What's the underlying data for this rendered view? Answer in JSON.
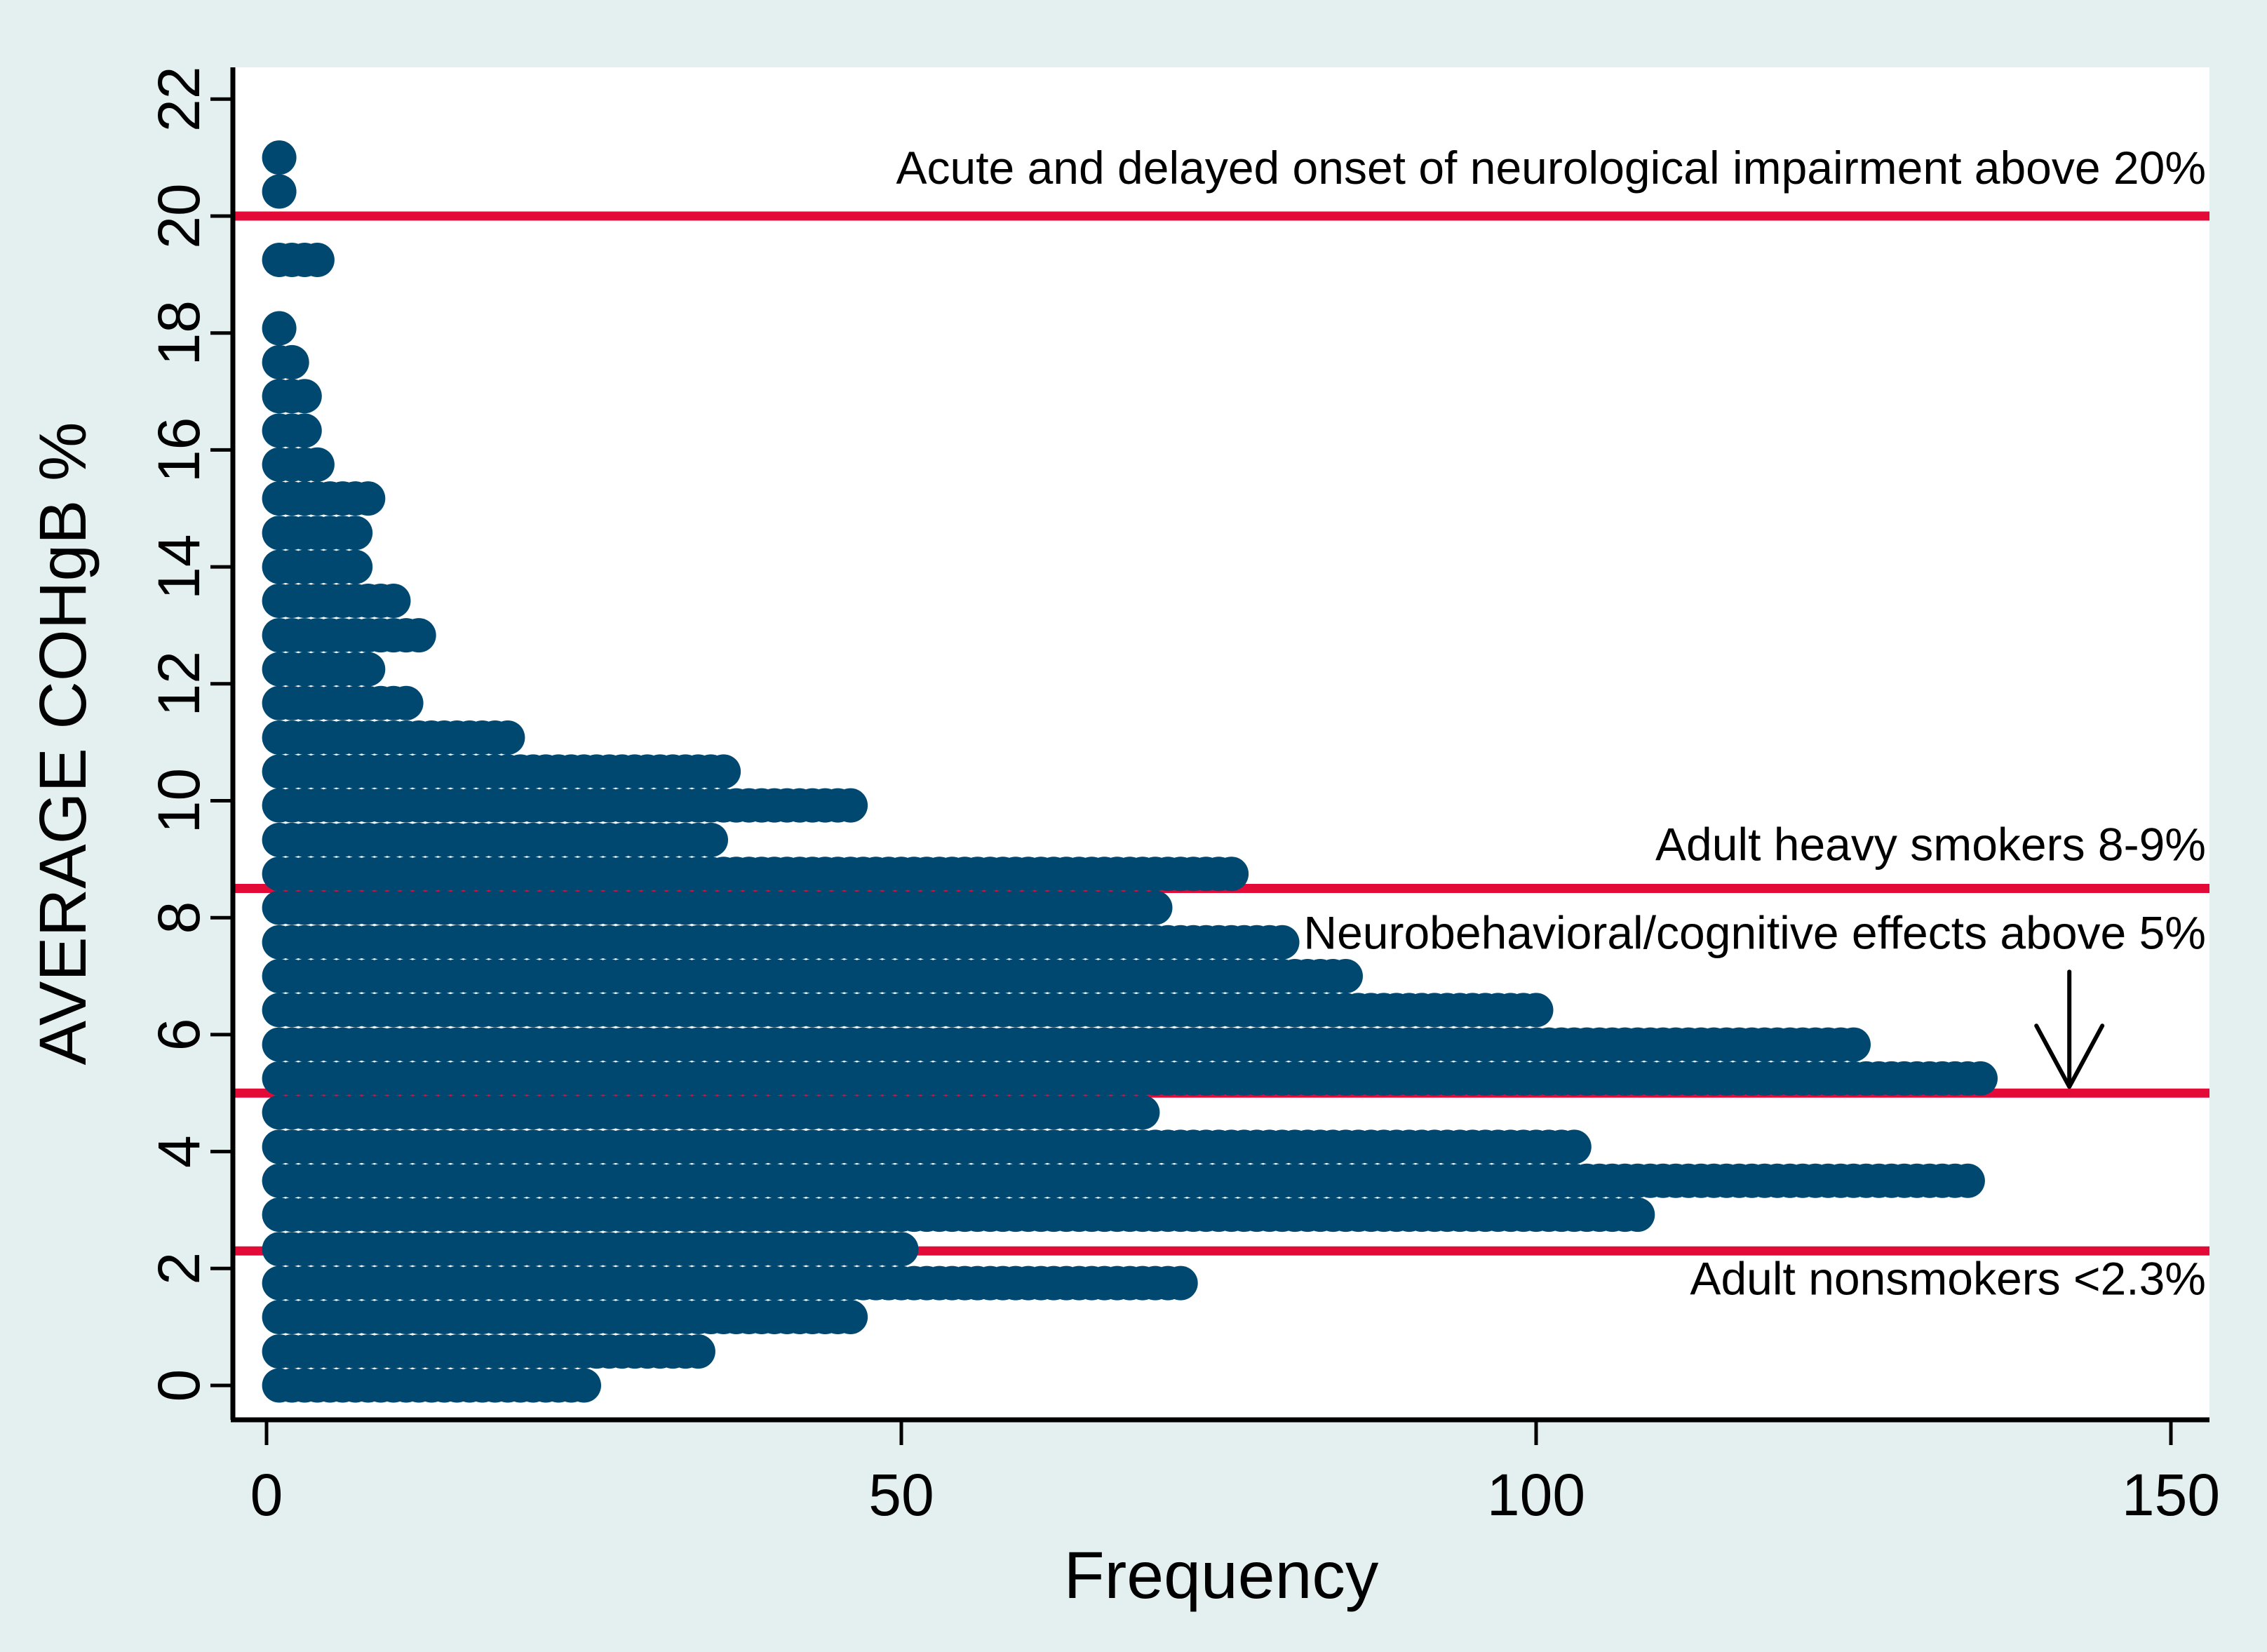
{
  "chart_data": {
    "type": "scatter",
    "subtype": "dot-frequency-plot",
    "title": "",
    "xlabel": "Frequency",
    "ylabel": "AVERAGE COHgB %",
    "xlim": [
      0,
      153
    ],
    "ylim": [
      0,
      22.4
    ],
    "x_ticks": [
      0,
      50,
      100,
      150
    ],
    "y_ticks": [
      0,
      2,
      4,
      6,
      8,
      10,
      12,
      14,
      16,
      18,
      20,
      22
    ],
    "grid": false,
    "legend_position": "none",
    "rows": [
      {
        "cohgb": 21.0,
        "frequency": 1
      },
      {
        "cohgb": 20.42,
        "frequency": 1
      },
      {
        "cohgb": 19.25,
        "frequency": 4
      },
      {
        "cohgb": 18.08,
        "frequency": 1
      },
      {
        "cohgb": 17.5,
        "frequency": 2
      },
      {
        "cohgb": 16.92,
        "frequency": 3
      },
      {
        "cohgb": 16.33,
        "frequency": 3
      },
      {
        "cohgb": 15.75,
        "frequency": 4
      },
      {
        "cohgb": 15.17,
        "frequency": 8
      },
      {
        "cohgb": 14.58,
        "frequency": 7
      },
      {
        "cohgb": 14.0,
        "frequency": 7
      },
      {
        "cohgb": 13.42,
        "frequency": 10
      },
      {
        "cohgb": 12.83,
        "frequency": 12
      },
      {
        "cohgb": 12.25,
        "frequency": 8
      },
      {
        "cohgb": 11.67,
        "frequency": 11
      },
      {
        "cohgb": 11.08,
        "frequency": 19
      },
      {
        "cohgb": 10.5,
        "frequency": 36
      },
      {
        "cohgb": 9.92,
        "frequency": 46
      },
      {
        "cohgb": 9.33,
        "frequency": 35
      },
      {
        "cohgb": 8.75,
        "frequency": 76
      },
      {
        "cohgb": 8.17,
        "frequency": 70
      },
      {
        "cohgb": 7.58,
        "frequency": 80
      },
      {
        "cohgb": 7.0,
        "frequency": 85
      },
      {
        "cohgb": 6.42,
        "frequency": 100
      },
      {
        "cohgb": 5.83,
        "frequency": 125
      },
      {
        "cohgb": 5.25,
        "frequency": 135
      },
      {
        "cohgb": 4.67,
        "frequency": 69
      },
      {
        "cohgb": 4.08,
        "frequency": 103
      },
      {
        "cohgb": 3.5,
        "frequency": 134
      },
      {
        "cohgb": 2.92,
        "frequency": 108
      },
      {
        "cohgb": 2.33,
        "frequency": 50
      },
      {
        "cohgb": 1.75,
        "frequency": 72
      },
      {
        "cohgb": 1.17,
        "frequency": 46
      },
      {
        "cohgb": 0.58,
        "frequency": 34
      },
      {
        "cohgb": 0.0,
        "frequency": 25
      }
    ],
    "reference_lines": [
      {
        "value": 20,
        "label": "Acute and delayed onset of neurological impairment above 20%",
        "label_position": "above",
        "arrow": false
      },
      {
        "value": 8.5,
        "label": "Adult heavy smokers 8-9%",
        "label_position": "above",
        "arrow": false
      },
      {
        "value": 5,
        "label": "Neurobehavioral/cognitive effects above 5%",
        "label_position": "above",
        "arrow": true,
        "arrow_x_frequency": 142
      },
      {
        "value": 2.3,
        "label": "Adult nonsmokers <2.3%",
        "label_position": "below",
        "arrow": false
      }
    ],
    "colors": {
      "dot": "#004870",
      "reference_line": "#E40A38",
      "figure_background": "#E4F0F0",
      "plot_background": "#FFFFFF",
      "axis": "#000000",
      "annotation_text": "#000000"
    }
  }
}
